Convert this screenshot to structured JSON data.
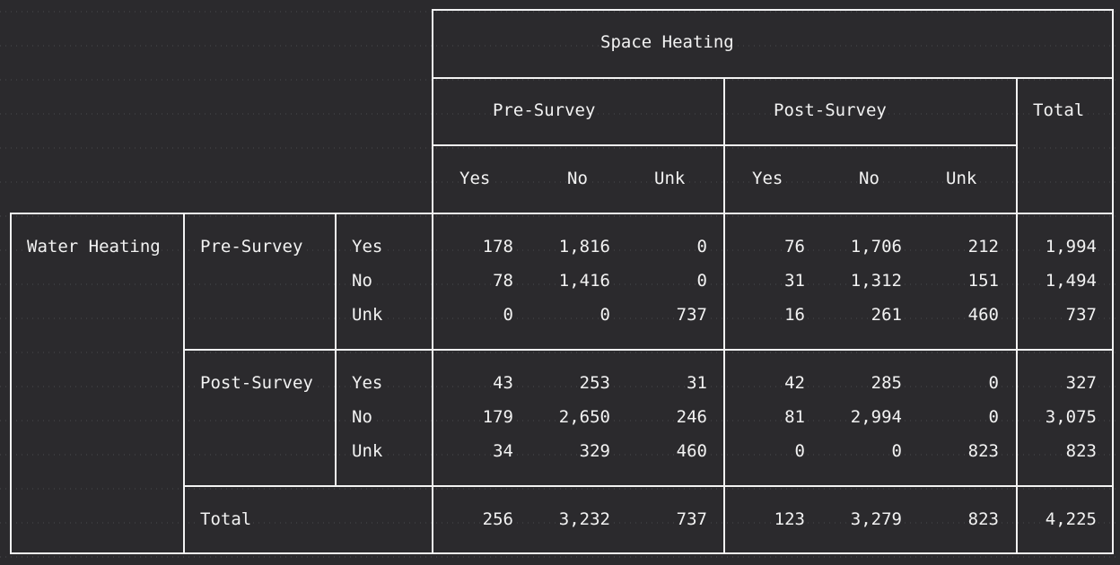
{
  "header": {
    "group_title": "Space Heating",
    "pre_survey": "Pre-Survey",
    "post_survey": "Post-Survey",
    "total": "Total",
    "sub_columns": [
      "Yes",
      "No",
      "Unk",
      "Yes",
      "No",
      "Unk"
    ]
  },
  "row_header": {
    "variable": "Water Heating",
    "pre_survey": "Pre-Survey",
    "post_survey": "Post-Survey",
    "total": "Total",
    "levels": [
      "Yes",
      "No",
      "Unk"
    ]
  },
  "table": {
    "rows": [
      {
        "group": "Pre-Survey",
        "level": "Yes",
        "values": [
          "178",
          "1,816",
          "0",
          "76",
          "1,706",
          "212"
        ],
        "total": "1,994"
      },
      {
        "group": "Pre-Survey",
        "level": "No",
        "values": [
          "78",
          "1,416",
          "0",
          "31",
          "1,312",
          "151"
        ],
        "total": "1,494"
      },
      {
        "group": "Pre-Survey",
        "level": "Unk",
        "values": [
          "0",
          "0",
          "737",
          "16",
          "261",
          "460"
        ],
        "total": "737"
      },
      {
        "group": "Post-Survey",
        "level": "Yes",
        "values": [
          "43",
          "253",
          "31",
          "42",
          "285",
          "0"
        ],
        "total": "327"
      },
      {
        "group": "Post-Survey",
        "level": "No",
        "values": [
          "179",
          "2,650",
          "246",
          "81",
          "2,994",
          "0"
        ],
        "total": "3,075"
      },
      {
        "group": "Post-Survey",
        "level": "Unk",
        "values": [
          "34",
          "329",
          "460",
          "0",
          "0",
          "823"
        ],
        "total": "823"
      }
    ],
    "totals": {
      "values": [
        "256",
        "3,232",
        "737",
        "123",
        "3,279",
        "823"
      ],
      "total": "4,225"
    }
  },
  "colors": {
    "background": "#2b2a2d",
    "foreground": "#f2f2f2",
    "dots": "#4a494d"
  }
}
